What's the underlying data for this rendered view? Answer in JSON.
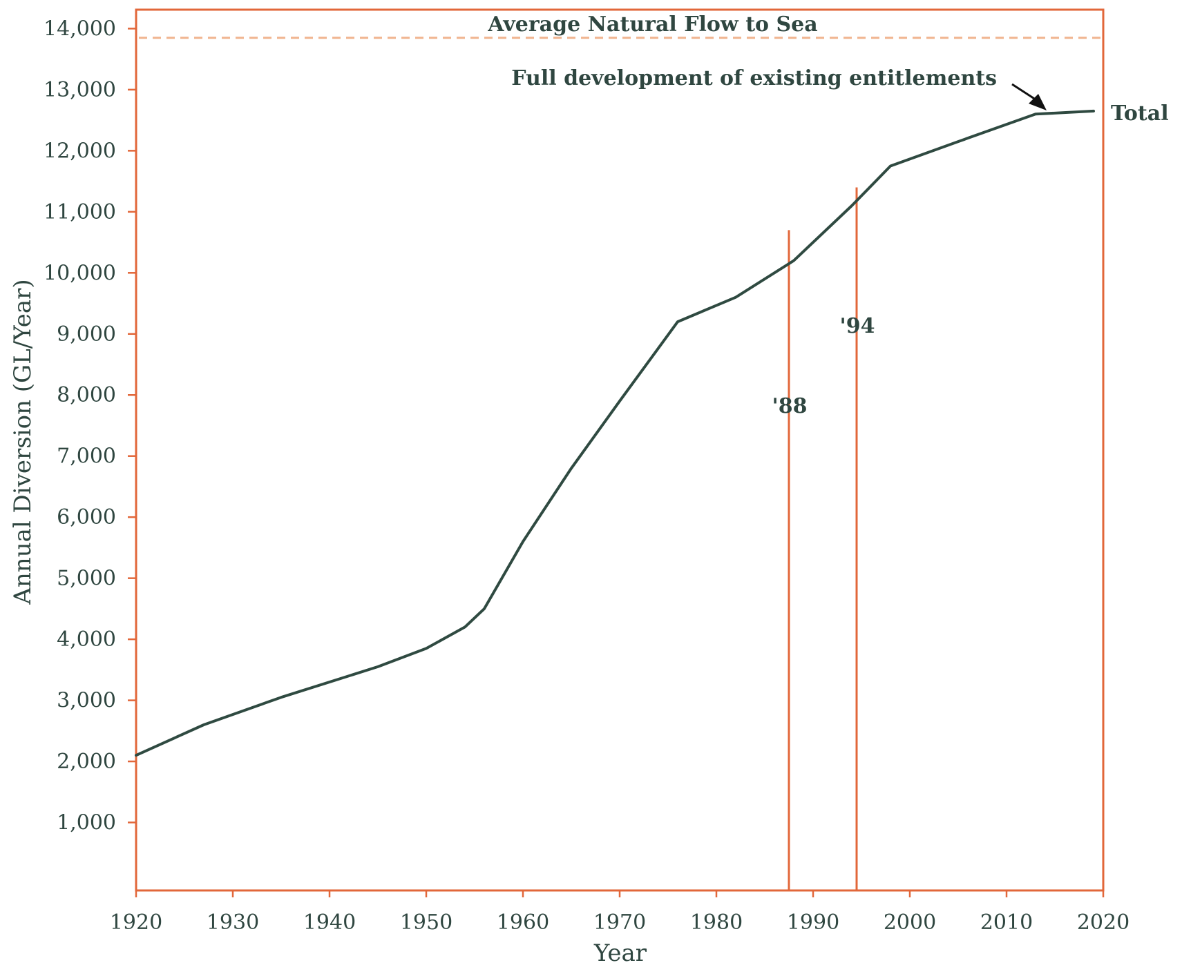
{
  "chart_data": {
    "type": "line",
    "title": "",
    "xlabel": "Year",
    "ylabel": "Annual Diversion (GL/Year)",
    "xlim": [
      1920,
      2020
    ],
    "ylim": [
      0,
      14500
    ],
    "x_ticks": [
      "1920",
      "1930",
      "1940",
      "1950",
      "1960",
      "1970",
      "1980",
      "1990",
      "2000",
      "2010",
      "2020"
    ],
    "y_ticks": [
      "1,000",
      "2,000",
      "3,000",
      "4,000",
      "5,000",
      "6,000",
      "7,000",
      "8,000",
      "9,000",
      "10,000",
      "11,000",
      "12,000",
      "13,000",
      "14,000"
    ],
    "grid": false,
    "series": [
      {
        "name": "Total",
        "x": [
          1920,
          1927,
          1935,
          1945,
          1950,
          1954,
          1956,
          1960,
          1965,
          1970,
          1976,
          1982,
          1988,
          1994,
          1998,
          2005,
          2013,
          2019
        ],
        "values": [
          2100,
          2600,
          3050,
          3550,
          3850,
          4200,
          4500,
          5600,
          6800,
          7900,
          9200,
          9600,
          10200,
          11100,
          11750,
          12150,
          12600,
          12650
        ]
      }
    ],
    "reference_lines": {
      "natural_flow": {
        "label": "Average Natural Flow to Sea",
        "value": 13850
      },
      "markers": [
        {
          "label": "'88",
          "year": 1987.5,
          "ymax": 10700
        },
        {
          "label": "'94",
          "year": 1994.5,
          "ymax": 11400
        }
      ]
    },
    "annotations": {
      "full_development": "Full development of existing entitlements",
      "series_end_label": "Total"
    },
    "colors": {
      "frame": "#e2673a",
      "line": "#2f4a41",
      "natural_flow": "#f0b48e",
      "text": "#2f4640"
    }
  }
}
